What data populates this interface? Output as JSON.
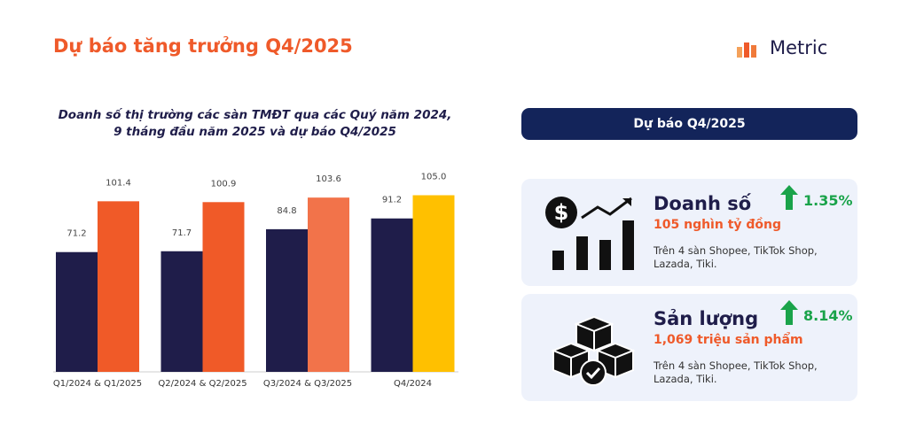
{
  "header": {
    "title": "Dự báo tăng trưởng Q4/2025",
    "logo": "Metric"
  },
  "chart_data": {
    "type": "bar",
    "title": "Doanh số thị trường các sàn TMĐT qua các Quý năm 2024, 9 tháng đầu năm 2025 và dự báo Q4/2025",
    "categories": [
      "Q1/2024 & Q1/2025",
      "Q2/2024 & Q2/2025",
      "Q3/2024 & Q3/2025",
      "Q4/2024"
    ],
    "series": [
      {
        "color": "#1f1d4a",
        "values": [
          71.2,
          71.7,
          84.8,
          91.2
        ]
      },
      {
        "color": "#f05a28",
        "colors": [
          "#f05a28",
          "#f05a28",
          "#f2734a",
          "#ffc000"
        ],
        "values": [
          101.4,
          100.9,
          103.6,
          105.0
        ],
        "value_labels": [
          "101.4",
          "100.9",
          "103.6",
          "105.0"
        ]
      }
    ],
    "ylim": [
      0,
      110
    ],
    "grid": false
  },
  "forecast": {
    "title": "Dự báo Q4/2025",
    "cards": [
      {
        "title": "Doanh số",
        "value": "105 nghìn tỷ đồng",
        "change": "1.35%",
        "note": "Trên 4 sàn Shopee, TikTok Shop, Lazada, Tiki."
      },
      {
        "title": "Sản lượng",
        "value": "1,069 triệu sản phẩm",
        "change": "8.14%",
        "note": "Trên 4 sàn Shopee, TikTok Shop, Lazada, Tiki."
      }
    ]
  }
}
